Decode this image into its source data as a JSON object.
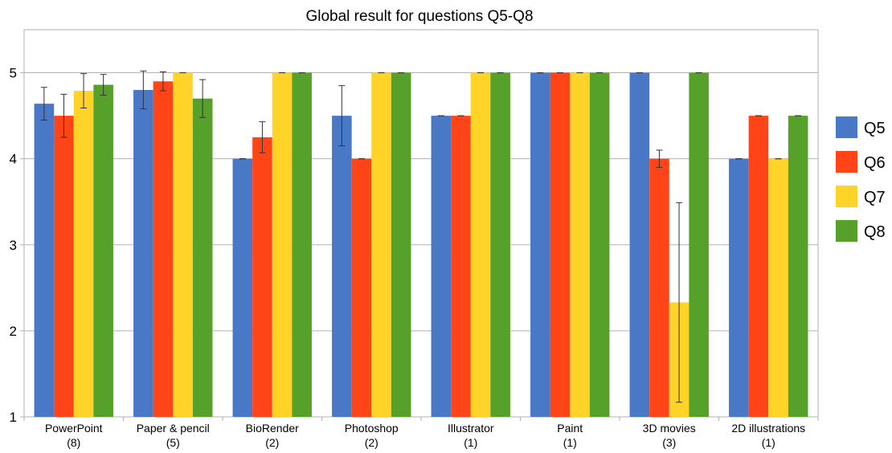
{
  "chart_data": {
    "type": "bar",
    "title": "Global result for questions Q5-Q8",
    "xlabel": "",
    "ylabel": "",
    "ylim": [
      1,
      5.5
    ],
    "yticks": [
      "1",
      "2",
      "3",
      "4",
      "5"
    ],
    "grid": true,
    "legend": "right",
    "categories": [
      {
        "name": "PowerPoint",
        "count": "(8)"
      },
      {
        "name": "Paper & pencil",
        "count": "(5)"
      },
      {
        "name": "BioRender",
        "count": "(2)"
      },
      {
        "name": "Photoshop",
        "count": "(2)"
      },
      {
        "name": "Illustrator",
        "count": "(1)"
      },
      {
        "name": "Paint",
        "count": "(1)"
      },
      {
        "name": "3D movies",
        "count": "(3)"
      },
      {
        "name": "2D illustrations",
        "count": "(1)"
      }
    ],
    "series": [
      {
        "name": "Q5",
        "color": "#4878c6",
        "values": [
          4.64,
          4.8,
          4.0,
          4.5,
          4.5,
          5.0,
          5.0,
          4.0
        ],
        "errors": [
          0.19,
          0.22,
          0.0,
          0.35,
          0.0,
          0.0,
          0.0,
          0.0
        ]
      },
      {
        "name": "Q6",
        "color": "#ff4417",
        "values": [
          4.5,
          4.9,
          4.25,
          4.0,
          4.5,
          5.0,
          4.0,
          4.5
        ],
        "errors": [
          0.25,
          0.11,
          0.18,
          0.0,
          0.0,
          0.0,
          0.1,
          0.0
        ]
      },
      {
        "name": "Q7",
        "color": "#ffd328",
        "values": [
          4.79,
          5.0,
          5.0,
          5.0,
          5.0,
          5.0,
          2.33,
          4.0
        ],
        "errors": [
          0.2,
          0.0,
          0.0,
          0.0,
          0.0,
          0.0,
          1.16,
          0.0
        ]
      },
      {
        "name": "Q8",
        "color": "#55a12a",
        "values": [
          4.86,
          4.7,
          5.0,
          5.0,
          5.0,
          5.0,
          5.0,
          4.5
        ],
        "errors": [
          0.12,
          0.22,
          0.0,
          0.0,
          0.0,
          0.0,
          0.0,
          0.0
        ]
      }
    ]
  }
}
